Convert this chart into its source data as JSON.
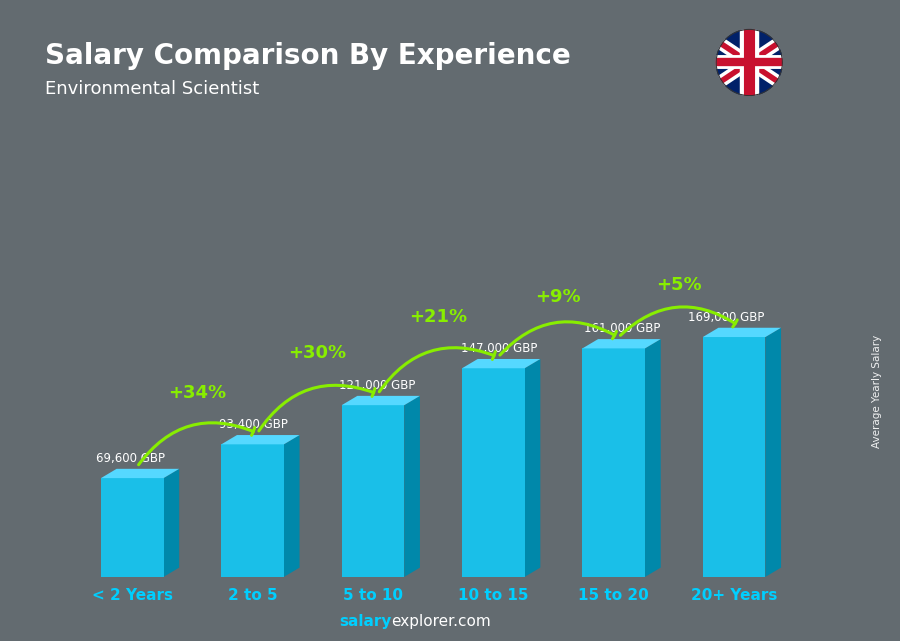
{
  "title": "Salary Comparison By Experience",
  "subtitle": "Environmental Scientist",
  "categories": [
    "< 2 Years",
    "2 to 5",
    "5 to 10",
    "10 to 15",
    "15 to 20",
    "20+ Years"
  ],
  "values": [
    69600,
    93400,
    121000,
    147000,
    161000,
    169000
  ],
  "value_labels": [
    "69,600 GBP",
    "93,400 GBP",
    "121,000 GBP",
    "147,000 GBP",
    "161,000 GBP",
    "169,000 GBP"
  ],
  "pct_labels": [
    "+34%",
    "+30%",
    "+21%",
    "+9%",
    "+5%"
  ],
  "bar_face_color": "#1ABFE8",
  "bar_top_color": "#55D8FF",
  "bar_side_color": "#0088AA",
  "bar_bottom_color": "#006688",
  "background_color": "#636B70",
  "title_color": "#ffffff",
  "subtitle_color": "#ffffff",
  "category_color": "#00CFFF",
  "value_label_color": "#ffffff",
  "pct_color": "#88EE00",
  "ylabel_text": "Average Yearly Salary",
  "footer_salary": "salary",
  "footer_explorer": "explorer.com",
  "footer_salary_color": "#00CFFF",
  "footer_explorer_color": "#ffffff"
}
